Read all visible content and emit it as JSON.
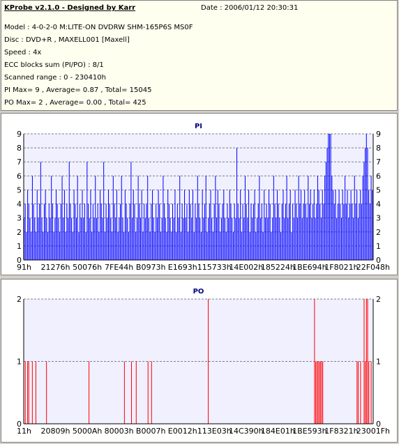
{
  "header": {
    "title": "KProbe v2.1.0 - Designed by Karr",
    "date": "Date : 2006/01/12 20:30:31",
    "model": "Model : 4-0-2-0 M:LITE-ON DVDRW SHM-165P6S MS0F",
    "disc": "Disc : DVD+R , MAXELL001 [Maxell]",
    "speed": "Speed : 4x",
    "ecc": "ECC blocks sum (PI/PO) : 8/1",
    "range": "Scanned range : 0 - 230410h",
    "pi_stats": "PI Max= 9 , Average= 0.87 , Total= 15045",
    "po_stats": "PO Max= 2 , Average= 0.00 , Total= 425"
  },
  "colors": {
    "pi": "#0000ff",
    "po": "#ff0000",
    "plot_bg": "#f0f0ff",
    "grid": "#808080"
  },
  "chart_data": [
    {
      "type": "bar",
      "title": "PI",
      "ylim": [
        0,
        9
      ],
      "yticks": [
        0,
        1,
        2,
        3,
        4,
        5,
        6,
        7,
        8,
        9
      ],
      "xticks": [
        "91h",
        "21276h",
        "50076h",
        "7FE44h",
        "B0973h",
        "E1693h",
        "115733h",
        "14E002h",
        "185224h",
        "1BE694h",
        "1F8021h",
        "22F048h"
      ],
      "grid": true,
      "series": [
        {
          "values": [
            3,
            4,
            2,
            5,
            4,
            3,
            2,
            6,
            4,
            3,
            2,
            5,
            3,
            4,
            7,
            3,
            2,
            4,
            5,
            3,
            2,
            4,
            3,
            6,
            4,
            2,
            3,
            5,
            4,
            3,
            2,
            4,
            6,
            3,
            5,
            2,
            4,
            3,
            7,
            4,
            3,
            2,
            5,
            4,
            3,
            6,
            2,
            4,
            3,
            5,
            3,
            4,
            2,
            7,
            4,
            3,
            5,
            2,
            4,
            3,
            6,
            3,
            4,
            2,
            5,
            4,
            3,
            7,
            2,
            4,
            3,
            5,
            4,
            3,
            2,
            6,
            4,
            3,
            5,
            2,
            3,
            4,
            6,
            3,
            2,
            5,
            4,
            3,
            2,
            4,
            7,
            3,
            5,
            4,
            2,
            3,
            6,
            4,
            3,
            5,
            2,
            4,
            3,
            4,
            6,
            3,
            2,
            4,
            5,
            3,
            2,
            4,
            3,
            5,
            4,
            2,
            3,
            6,
            4,
            3,
            2,
            5,
            4,
            3,
            2,
            4,
            3,
            5,
            2,
            4,
            3,
            6,
            2,
            4,
            3,
            5,
            3,
            4,
            2,
            5,
            4,
            3,
            5,
            2,
            4,
            3,
            6,
            4,
            3,
            2,
            5,
            3,
            4,
            6,
            2,
            3,
            4,
            5,
            3,
            2,
            4,
            6,
            3,
            5,
            4,
            2,
            3,
            4,
            5,
            3,
            2,
            4,
            3,
            5,
            4,
            3,
            2,
            4,
            3,
            8,
            4,
            3,
            5,
            2,
            4,
            3,
            6,
            4,
            3,
            5,
            2,
            4,
            3,
            4,
            5,
            2,
            3,
            4,
            6,
            3,
            4,
            2,
            5,
            3,
            4,
            3,
            5,
            4,
            2,
            3,
            6,
            4,
            3,
            5,
            4,
            3,
            2,
            4,
            5,
            3,
            4,
            6,
            3,
            4,
            5,
            2,
            4,
            3,
            5,
            4,
            3,
            6,
            4,
            5,
            3,
            4,
            5,
            4,
            3,
            6,
            4,
            5,
            3,
            4,
            5,
            3,
            4,
            6,
            5,
            4,
            3,
            5,
            4,
            6,
            7,
            8,
            9,
            9,
            9,
            6,
            5,
            4,
            5,
            3,
            4,
            5,
            4,
            3,
            5,
            4,
            6,
            4,
            5,
            3,
            4,
            5,
            4,
            3,
            6,
            4,
            5,
            3,
            4,
            5,
            4,
            6,
            7,
            8,
            9,
            8,
            5,
            4,
            6,
            5
          ]
        }
      ]
    },
    {
      "type": "bar",
      "title": "PO",
      "ylim": [
        0,
        2
      ],
      "yticks": [
        0,
        1,
        2
      ],
      "xticks": [
        "11h",
        "20809h",
        "5000Ah",
        "80003h",
        "B0007h",
        "E0012h",
        "113E03h",
        "14C390h",
        "184E01h",
        "1BE593h",
        "1F8321h",
        "23001Fh"
      ],
      "grid": true,
      "series": [
        {
          "values": [
            0,
            1,
            0,
            1,
            1,
            0,
            0,
            1,
            0,
            0,
            1,
            0,
            0,
            0,
            0,
            0,
            0,
            0,
            0,
            1,
            0,
            0,
            0,
            0,
            0,
            0,
            0,
            0,
            0,
            0,
            0,
            0,
            0,
            0,
            0,
            0,
            0,
            0,
            0,
            0,
            0,
            0,
            0,
            0,
            0,
            0,
            0,
            0,
            0,
            0,
            0,
            0,
            0,
            0,
            0,
            1,
            0,
            0,
            0,
            0,
            0,
            0,
            0,
            0,
            0,
            0,
            0,
            0,
            0,
            0,
            0,
            0,
            0,
            0,
            0,
            0,
            0,
            0,
            0,
            0,
            0,
            0,
            0,
            0,
            0,
            1,
            0,
            0,
            0,
            0,
            0,
            1,
            0,
            0,
            0,
            1,
            0,
            0,
            0,
            0,
            0,
            0,
            0,
            0,
            0,
            1,
            0,
            0,
            1,
            0,
            0,
            0,
            0,
            0,
            0,
            0,
            0,
            0,
            0,
            0,
            0,
            0,
            0,
            0,
            0,
            0,
            0,
            0,
            0,
            0,
            0,
            0,
            0,
            0,
            0,
            0,
            0,
            0,
            0,
            0,
            0,
            0,
            0,
            0,
            0,
            0,
            0,
            0,
            0,
            0,
            0,
            0,
            0,
            0,
            0,
            0,
            2,
            0,
            0,
            0,
            0,
            0,
            0,
            0,
            0,
            0,
            0,
            0,
            0,
            0,
            0,
            0,
            0,
            0,
            0,
            0,
            0,
            0,
            0,
            0,
            0,
            0,
            0,
            0,
            0,
            0,
            0,
            0,
            0,
            0,
            0,
            0,
            0,
            0,
            0,
            0,
            0,
            0,
            0,
            0,
            0,
            0,
            0,
            0,
            0,
            0,
            0,
            0,
            0,
            0,
            0,
            0,
            0,
            0,
            0,
            0,
            0,
            0,
            0,
            0,
            0,
            0,
            0,
            0,
            0,
            0,
            0,
            0,
            0,
            0,
            0,
            0,
            0,
            0,
            0,
            0,
            0,
            0,
            0,
            0,
            0,
            0,
            0,
            0,
            0,
            0,
            2,
            1,
            1,
            1,
            1,
            1,
            1,
            1,
            0,
            0,
            0,
            0,
            0,
            0,
            0,
            0,
            0,
            0,
            0,
            0,
            0,
            0,
            0,
            0,
            0,
            0,
            0,
            0,
            0,
            0,
            0,
            0,
            0,
            0,
            0,
            0,
            1,
            1,
            0,
            1,
            0,
            0,
            2,
            1,
            2,
            2,
            1,
            0,
            1,
            0
          ]
        }
      ]
    }
  ]
}
